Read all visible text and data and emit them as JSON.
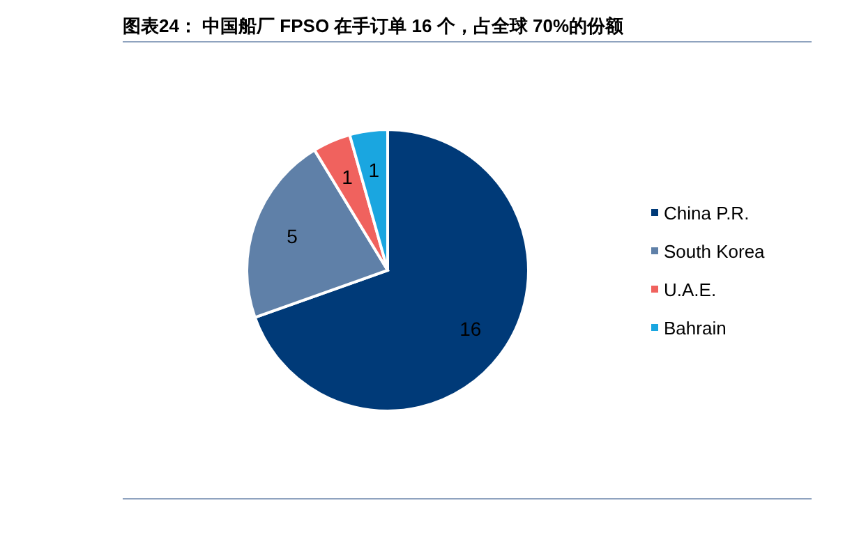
{
  "chart_data": {
    "type": "pie",
    "title": "图表24：  中国船厂 FPSO 在手订单 16 个，占全球 70%的份额",
    "categories": [
      "China P.R.",
      "South Korea",
      "U.A.E.",
      "Bahrain"
    ],
    "values": [
      16,
      5,
      1,
      1
    ],
    "colors": [
      "#003a78",
      "#5f80a8",
      "#f0625e",
      "#1aa6e0"
    ],
    "data_labels": true,
    "legend": "right"
  }
}
